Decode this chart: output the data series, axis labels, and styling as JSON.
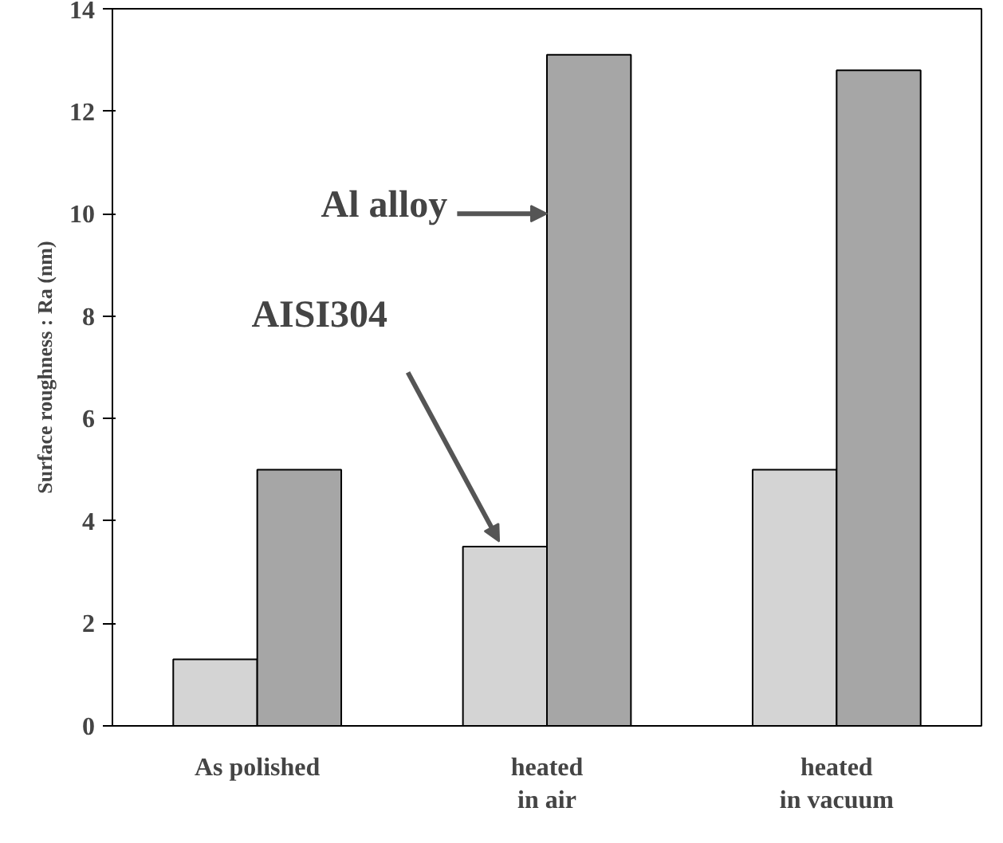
{
  "chart_data": {
    "type": "bar",
    "ylabel": "Surface roughness : Ra (nm)",
    "categories": [
      "As polished",
      "heated\nin air",
      "heated\nin vacuum"
    ],
    "series": [
      {
        "name": "AISI304",
        "color": "#d4d4d4",
        "values": [
          1.3,
          3.5,
          5.0
        ]
      },
      {
        "name": "Al alloy",
        "color": "#a6a6a6",
        "values": [
          5.0,
          13.1,
          12.8
        ]
      }
    ],
    "ylim": [
      0,
      14
    ],
    "yticks": [
      0,
      2,
      4,
      6,
      8,
      10,
      12,
      14
    ],
    "grid": false
  }
}
